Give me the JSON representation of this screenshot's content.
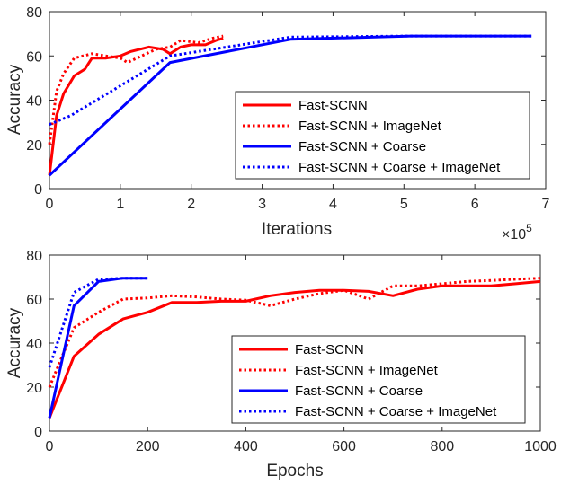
{
  "chart_data": [
    {
      "type": "line",
      "xlabel": "Iterations",
      "ylabel": "Accuracy",
      "x_exponent_label": "×10",
      "x_exponent_power": "5",
      "xlim": [
        0,
        7
      ],
      "ylim": [
        0,
        80
      ],
      "xticks": [
        0,
        1,
        2,
        3,
        4,
        5,
        6,
        7
      ],
      "yticks": [
        0,
        20,
        40,
        60,
        80
      ],
      "grid": false,
      "legend_position": "bottom-right",
      "series": [
        {
          "name": "Fast-SCNN",
          "color": "#ff0000",
          "style": "solid",
          "points": [
            [
              0,
              6
            ],
            [
              0.1,
              33
            ],
            [
              0.2,
              43
            ],
            [
              0.35,
              51
            ],
            [
              0.5,
              54
            ],
            [
              0.6,
              59
            ],
            [
              0.8,
              59
            ],
            [
              1.0,
              60
            ],
            [
              1.15,
              62
            ],
            [
              1.4,
              64
            ],
            [
              1.6,
              63
            ],
            [
              1.7,
              61
            ],
            [
              1.85,
              64
            ],
            [
              2.0,
              65
            ],
            [
              2.2,
              65
            ],
            [
              2.35,
              67
            ],
            [
              2.45,
              68
            ]
          ]
        },
        {
          "name": "Fast-SCNN + ImageNet",
          "color": "#ff0000",
          "style": "dotted",
          "points": [
            [
              0,
              20
            ],
            [
              0.1,
              44
            ],
            [
              0.2,
              52
            ],
            [
              0.35,
              59
            ],
            [
              0.6,
              61
            ],
            [
              0.8,
              60
            ],
            [
              1.0,
              59
            ],
            [
              1.1,
              57
            ],
            [
              1.3,
              60
            ],
            [
              1.5,
              63
            ],
            [
              1.7,
              64
            ],
            [
              1.85,
              67
            ],
            [
              2.1,
              66
            ],
            [
              2.3,
              68
            ],
            [
              2.45,
              69
            ]
          ]
        },
        {
          "name": "Fast-SCNN + Coarse",
          "color": "#0000ff",
          "style": "solid",
          "points": [
            [
              0,
              6
            ],
            [
              1.7,
              57
            ],
            [
              3.4,
              67.5
            ],
            [
              5.1,
              69
            ],
            [
              6.8,
              69
            ]
          ]
        },
        {
          "name": "Fast-SCNN + Coarse + ImageNet",
          "color": "#0000ff",
          "style": "dotted",
          "points": [
            [
              0,
              29
            ],
            [
              0.3,
              33
            ],
            [
              1.7,
              60
            ],
            [
              3.4,
              68.5
            ],
            [
              5.1,
              69
            ],
            [
              6.8,
              69
            ]
          ]
        }
      ]
    },
    {
      "type": "line",
      "xlabel": "Epochs",
      "ylabel": "Accuracy",
      "xlim": [
        0,
        1000
      ],
      "ylim": [
        0,
        80
      ],
      "xticks": [
        0,
        200,
        400,
        600,
        800,
        1000
      ],
      "yticks": [
        0,
        20,
        40,
        60,
        80
      ],
      "grid": false,
      "legend_position": "bottom-right",
      "series": [
        {
          "name": "Fast-SCNN",
          "color": "#ff0000",
          "style": "solid",
          "points": [
            [
              0,
              6
            ],
            [
              50,
              34
            ],
            [
              100,
              44
            ],
            [
              150,
              51
            ],
            [
              200,
              54
            ],
            [
              250,
              58.5
            ],
            [
              300,
              58.5
            ],
            [
              350,
              59
            ],
            [
              400,
              59
            ],
            [
              450,
              61.5
            ],
            [
              500,
              63
            ],
            [
              550,
              64
            ],
            [
              600,
              64
            ],
            [
              650,
              63.5
            ],
            [
              700,
              61.5
            ],
            [
              750,
              64.5
            ],
            [
              800,
              66
            ],
            [
              850,
              66
            ],
            [
              900,
              66
            ],
            [
              950,
              67
            ],
            [
              1000,
              68
            ]
          ]
        },
        {
          "name": "Fast-SCNN + ImageNet",
          "color": "#ff0000",
          "style": "dotted",
          "points": [
            [
              0,
              20
            ],
            [
              50,
              47
            ],
            [
              100,
              54
            ],
            [
              150,
              60
            ],
            [
              200,
              60.5
            ],
            [
              250,
              61.5
            ],
            [
              300,
              61
            ],
            [
              350,
              60
            ],
            [
              400,
              59.5
            ],
            [
              450,
              57
            ],
            [
              500,
              60
            ],
            [
              550,
              62.5
            ],
            [
              600,
              64
            ],
            [
              650,
              60
            ],
            [
              700,
              66
            ],
            [
              750,
              66
            ],
            [
              800,
              67
            ],
            [
              850,
              68
            ],
            [
              900,
              68.5
            ],
            [
              950,
              69
            ],
            [
              1000,
              69.5
            ]
          ]
        },
        {
          "name": "Fast-SCNN + Coarse",
          "color": "#0000ff",
          "style": "solid",
          "points": [
            [
              0,
              6
            ],
            [
              50,
              57
            ],
            [
              100,
              68
            ],
            [
              150,
              69.5
            ],
            [
              200,
              69.5
            ]
          ]
        },
        {
          "name": "Fast-SCNN + Coarse + ImageNet",
          "color": "#0000ff",
          "style": "dotted",
          "points": [
            [
              0,
              29
            ],
            [
              50,
              63
            ],
            [
              100,
              69
            ],
            [
              150,
              69.5
            ],
            [
              200,
              69.5
            ]
          ]
        }
      ]
    }
  ]
}
